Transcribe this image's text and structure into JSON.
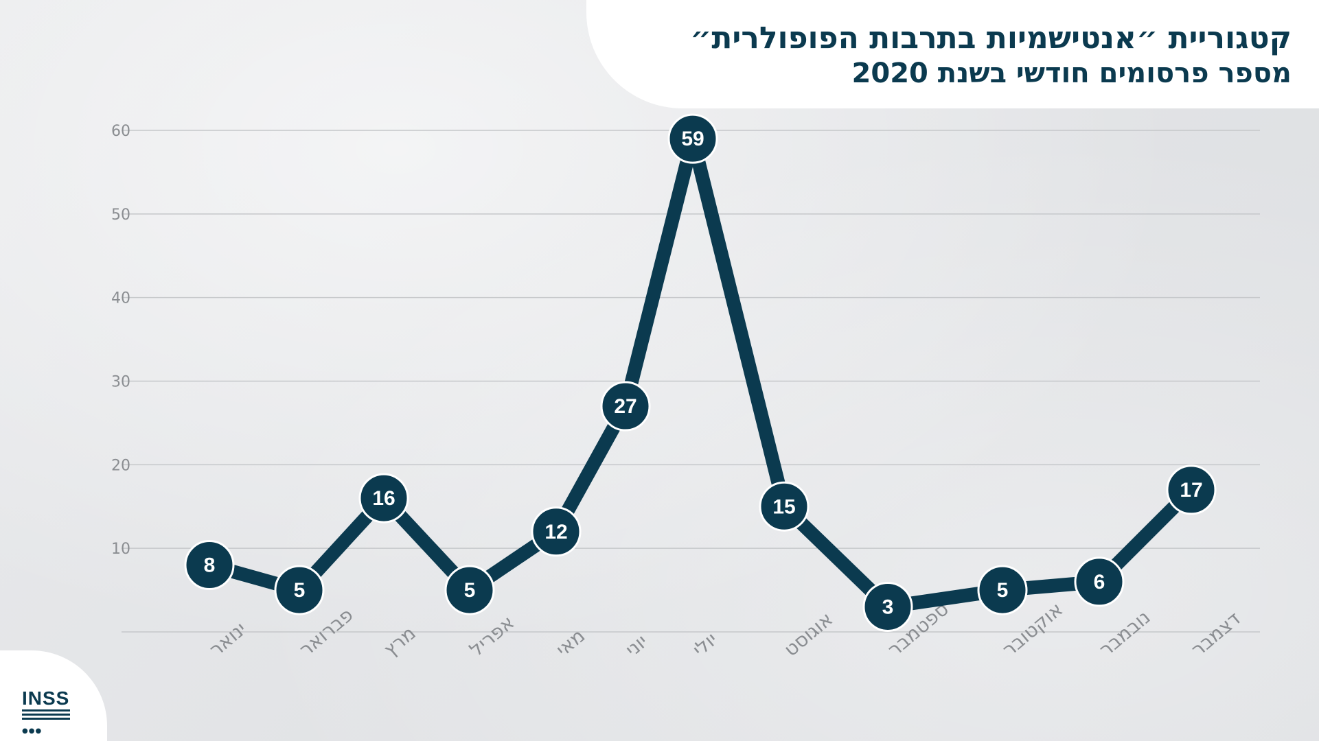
{
  "header": {
    "title": "קטגוריית ״אנטישמיות בתרבות הפופולרית״",
    "subtitle": "מספר פרסומים חודשי בשנת 2020"
  },
  "logo": {
    "text": "INSS",
    "icon": "inss-logo"
  },
  "colors": {
    "line": "#0b3a4f",
    "marker": "#0b3a4f",
    "label": "#ffffff",
    "axis_text": "#8a8d91",
    "grid": "#c5c7ca"
  },
  "chart_data": {
    "type": "line",
    "title": "קטגוריית ״אנטישמיות בתרבות הפופולרית״",
    "subtitle": "מספר פרסומים חודשי בשנת 2020",
    "xlabel": "",
    "ylabel": "",
    "categories": [
      "ינואר",
      "פברואר",
      "מרץ",
      "אפריל",
      "מאי",
      "יוני",
      "יולי",
      "אוגוסט",
      "ספטמבר",
      "אוקטובר",
      "נובמבר",
      "דצמבר"
    ],
    "values": [
      8,
      5,
      16,
      5,
      12,
      27,
      59,
      15,
      3,
      5,
      6,
      17
    ],
    "ylim": [
      0,
      60
    ],
    "yticks": [
      10,
      20,
      30,
      40,
      50,
      60
    ],
    "grid": true,
    "legend": "none"
  }
}
